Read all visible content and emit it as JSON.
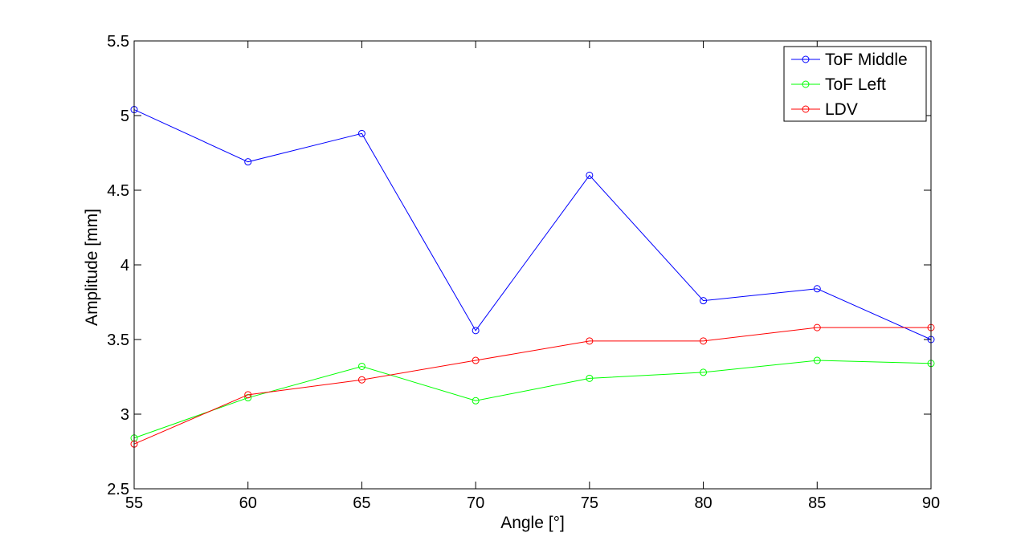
{
  "chart_data": {
    "type": "line",
    "title": "",
    "xlabel": "Angle [°]",
    "ylabel": "Amplitude [mm]",
    "x": [
      55,
      60,
      65,
      70,
      75,
      80,
      85,
      90
    ],
    "xlim": [
      55,
      90
    ],
    "ylim": [
      2.5,
      5.5
    ],
    "xticks": [
      55,
      60,
      65,
      70,
      75,
      80,
      85,
      90
    ],
    "xtick_labels": [
      "55",
      "60",
      "65",
      "70",
      "75",
      "80",
      "85",
      "90"
    ],
    "yticks": [
      2.5,
      3,
      3.5,
      4,
      4.5,
      5,
      5.5
    ],
    "ytick_labels": [
      "2.5",
      "3",
      "3.5",
      "4",
      "4.5",
      "5",
      "5.5"
    ],
    "grid": false,
    "legend_position": "top-right",
    "series": [
      {
        "name": "ToF Middle",
        "color": "#0000ff",
        "marker": "circle",
        "values": [
          5.04,
          4.69,
          4.88,
          3.56,
          4.6,
          3.76,
          3.84,
          3.5
        ]
      },
      {
        "name": "ToF Left",
        "color": "#00ff00",
        "marker": "circle",
        "values": [
          2.84,
          3.11,
          3.32,
          3.09,
          3.24,
          3.28,
          3.36,
          3.34
        ]
      },
      {
        "name": "LDV",
        "color": "#ff0000",
        "marker": "circle",
        "values": [
          2.8,
          3.13,
          3.23,
          3.36,
          3.49,
          3.49,
          3.58,
          3.58
        ]
      }
    ]
  }
}
